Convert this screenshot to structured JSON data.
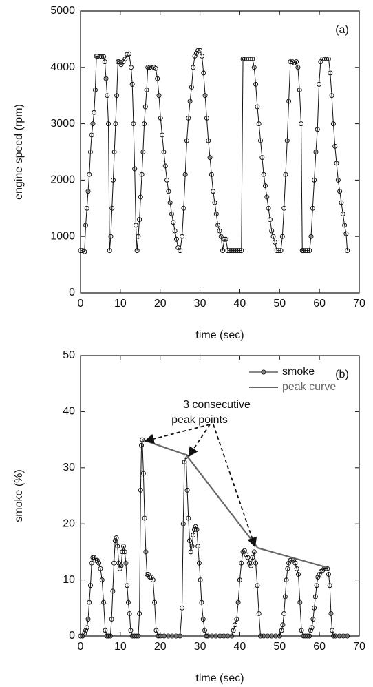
{
  "chart_data": [
    {
      "type": "line",
      "annotation": "(a)",
      "xlabel": "time (sec)",
      "ylabel": "engine speed (rpm)",
      "xlim": [
        0,
        70
      ],
      "ylim": [
        0,
        5000
      ],
      "xticks": [
        0,
        10,
        20,
        30,
        40,
        50,
        60,
        70
      ],
      "yticks": [
        0,
        1000,
        2000,
        3000,
        4000,
        5000
      ],
      "color": "#111111",
      "marker": "o",
      "x": [
        0,
        0.5,
        1,
        1.3,
        1.6,
        1.9,
        2.2,
        2.5,
        2.8,
        3.1,
        3.4,
        3.7,
        4,
        4.3,
        4.8,
        5.3,
        5.8,
        6.1,
        6.4,
        6.7,
        7,
        7.3,
        7.6,
        7.9,
        8.2,
        8.5,
        8.8,
        9.1,
        9.4,
        9.7,
        10.2,
        10.7,
        11.2,
        11.7,
        12.2,
        12.7,
        13,
        13.3,
        13.6,
        13.9,
        14.2,
        14.5,
        14.8,
        15.1,
        15.4,
        15.7,
        16,
        16.3,
        16.6,
        16.9,
        17.4,
        17.9,
        18.4,
        18.9,
        19.3,
        19.7,
        20.1,
        20.5,
        20.9,
        21.3,
        21.7,
        22.1,
        22.5,
        22.9,
        23.3,
        23.7,
        24.1,
        24.5,
        25,
        25.5,
        25.9,
        26.3,
        26.7,
        27.1,
        27.5,
        27.9,
        28.3,
        28.7,
        29.1,
        29.5,
        30,
        30.5,
        30.9,
        31.3,
        31.7,
        32.1,
        32.5,
        32.9,
        33.3,
        33.7,
        34.1,
        34.5,
        34.9,
        35.3,
        35.7,
        36.1,
        36.5,
        37,
        37.5,
        38,
        38.5,
        39,
        39.5,
        40,
        40.4,
        40.8,
        41.2,
        41.7,
        42.2,
        42.7,
        43.2,
        43.6,
        44,
        44.4,
        44.8,
        45.2,
        45.6,
        46,
        46.4,
        46.8,
        47.2,
        47.6,
        48,
        48.4,
        48.8,
        49.3,
        49.8,
        50.3,
        50.7,
        51.1,
        51.5,
        51.9,
        52.3,
        52.7,
        53.2,
        53.7,
        54.2,
        54.6,
        55,
        55.4,
        55.7,
        56,
        56.5,
        57,
        57.5,
        57.9,
        58.3,
        58.7,
        59.1,
        59.5,
        59.9,
        60.3,
        60.8,
        61.3,
        61.8,
        62.3,
        62.7,
        63.1,
        63.5,
        63.9,
        64.3,
        64.7,
        65.1,
        65.5,
        65.9,
        66.3,
        66.7,
        67
      ],
      "values": [
        750,
        750,
        730,
        1200,
        1500,
        1800,
        2100,
        2500,
        2800,
        3000,
        3200,
        3600,
        4200,
        4200,
        4190,
        4190,
        4190,
        4100,
        3800,
        3500,
        3000,
        750,
        1000,
        1500,
        2000,
        2500,
        3000,
        3500,
        4100,
        4100,
        4050,
        4100,
        4150,
        4230,
        4240,
        4000,
        3700,
        3000,
        2200,
        1200,
        750,
        1000,
        1300,
        1700,
        2100,
        2500,
        3000,
        3300,
        3600,
        4000,
        4000,
        3990,
        4000,
        3980,
        3800,
        3500,
        3100,
        2800,
        2500,
        2250,
        2000,
        1800,
        1600,
        1400,
        1250,
        1100,
        950,
        800,
        750,
        1000,
        1500,
        2100,
        2700,
        3100,
        3400,
        3650,
        4000,
        4200,
        4250,
        4300,
        4300,
        4200,
        3900,
        3500,
        3100,
        2700,
        2400,
        2100,
        1800,
        1600,
        1400,
        1200,
        1100,
        1000,
        750,
        950,
        950,
        750,
        750,
        750,
        750,
        750,
        750,
        750,
        750,
        4150,
        4150,
        4150,
        4150,
        4150,
        4150,
        4000,
        3700,
        3300,
        3000,
        2700,
        2400,
        2100,
        1900,
        1700,
        1500,
        1300,
        1100,
        1000,
        900,
        750,
        750,
        750,
        1000,
        1500,
        2100,
        2700,
        3400,
        4100,
        4100,
        4080,
        4100,
        4000,
        3600,
        3000,
        750,
        750,
        750,
        750,
        750,
        1000,
        1500,
        2000,
        2500,
        2900,
        3700,
        4100,
        4150,
        4150,
        4150,
        4150,
        3900,
        3500,
        3000,
        2600,
        2300,
        2000,
        1800,
        1600,
        1400,
        1200,
        1050,
        750
      ]
    },
    {
      "type": "line",
      "annotation": "(b)",
      "xlabel": "time (sec)",
      "ylabel": "smoke (%)",
      "xlim": [
        0,
        70
      ],
      "ylim": [
        0,
        50
      ],
      "xticks": [
        0,
        10,
        20,
        30,
        40,
        50,
        60,
        70
      ],
      "yticks": [
        0,
        10,
        20,
        30,
        40,
        50
      ],
      "note": [
        "3 consecutive",
        "peak points"
      ],
      "series": [
        {
          "name": "smoke",
          "color": "#111111",
          "marker": "o",
          "x": [
            0,
            0.5,
            1,
            1.3,
            1.6,
            1.9,
            2.2,
            2.5,
            2.8,
            3.1,
            3.4,
            3.8,
            4.2,
            4.6,
            5,
            5.4,
            5.8,
            6.2,
            6.6,
            7,
            7.5,
            7.8,
            8.1,
            8.4,
            8.7,
            9,
            9.3,
            9.6,
            9.9,
            10.2,
            10.5,
            10.8,
            11.1,
            11.4,
            11.7,
            12,
            12.3,
            12.6,
            13,
            13.5,
            14,
            14.5,
            14.8,
            15.1,
            15.3,
            15.5,
            15.8,
            16.1,
            16.4,
            16.7,
            17,
            17.4,
            17.8,
            18.2,
            18.6,
            19,
            19.5,
            20,
            21,
            22,
            23,
            24,
            25,
            25.5,
            25.8,
            26.1,
            26.5,
            26.8,
            27.1,
            27.4,
            27.7,
            28,
            28.3,
            28.6,
            28.9,
            29.2,
            29.5,
            29.8,
            30.1,
            30.4,
            30.8,
            31.2,
            31.6,
            32,
            33,
            34,
            35,
            36,
            37,
            38,
            38.4,
            38.8,
            39.2,
            39.6,
            40,
            40.4,
            40.8,
            41.2,
            41.6,
            42,
            42.4,
            42.8,
            43.2,
            43.6,
            44,
            44.4,
            44.8,
            45.2,
            46,
            47,
            48,
            49,
            50,
            50.5,
            50.8,
            51.1,
            51.4,
            51.7,
            52,
            52.3,
            52.7,
            53.1,
            53.5,
            53.9,
            54.3,
            54.7,
            55.1,
            55.5,
            56,
            56.5,
            57,
            57.5,
            57.8,
            58.1,
            58.4,
            58.7,
            59,
            59.3,
            59.6,
            60,
            60.4,
            60.8,
            61.2,
            61.6,
            62,
            62.3,
            62.6,
            62.9,
            63.2,
            63.5,
            64,
            65,
            66,
            67
          ],
          "values": [
            0,
            0,
            0.5,
            1,
            1.5,
            3,
            6,
            9,
            13,
            14,
            14,
            13.5,
            13.5,
            13,
            12,
            10,
            6,
            1,
            0,
            0,
            0,
            3,
            8,
            13,
            17,
            17.5,
            16,
            13,
            12,
            12.5,
            15,
            16,
            15,
            13,
            9,
            6,
            4,
            1,
            0,
            0,
            0,
            0,
            4,
            26,
            34,
            35,
            29,
            21,
            15,
            11,
            11,
            10.5,
            10.5,
            10,
            6,
            1,
            0,
            0,
            0,
            0,
            0,
            0,
            0,
            5,
            20,
            31,
            32,
            26,
            21,
            17,
            15,
            16,
            18,
            19,
            19.5,
            19,
            16,
            13,
            10,
            6,
            3,
            1,
            0,
            0,
            0,
            0,
            0,
            0,
            0,
            0,
            1,
            2,
            3,
            6,
            10,
            13,
            15,
            15.2,
            14.5,
            14,
            13,
            12.5,
            14,
            15,
            13,
            9,
            4,
            0,
            0,
            0,
            0,
            0,
            0,
            1,
            2,
            4,
            7,
            10,
            12,
            13,
            13.5,
            13.7,
            13.5,
            13,
            12,
            11,
            6,
            1,
            0,
            0,
            0,
            0,
            1,
            1.5,
            3,
            5,
            7,
            9,
            10.5,
            11,
            11.5,
            11.7,
            12,
            12,
            12,
            11,
            9,
            4,
            1,
            0,
            0,
            0,
            0,
            0
          ]
        },
        {
          "name": "peak curve",
          "color": "#666666",
          "x": [
            15.5,
            26.5,
            44.5,
            62
          ],
          "values": [
            35,
            32.3,
            15.7,
            12.2
          ]
        }
      ]
    }
  ]
}
